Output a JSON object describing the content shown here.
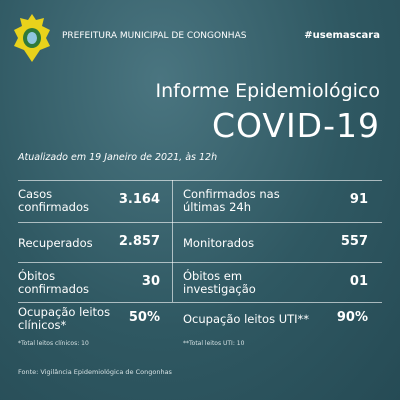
{
  "header": {
    "organization": "PREFEITURA MUNICIPAL DE CONGONHAS",
    "hashtag": "#usemascara"
  },
  "title": "Informe Epidemiológico",
  "subtitle": "COVID-19",
  "updated": "Atualizado em 19 Janeiro de 2021, às 12h",
  "rows": [
    [
      {
        "label": "Casos confirmados",
        "value": "3.164"
      },
      {
        "label": "Confirmados nas últimas 24h",
        "value": "91"
      }
    ],
    [
      {
        "label": "Recuperados",
        "value": "2.857"
      },
      {
        "label": "Monitorados",
        "value": "557"
      }
    ],
    [
      {
        "label": "Óbitos confirmados",
        "value": "30"
      },
      {
        "label": "Óbitos em investigação",
        "value": "01"
      }
    ],
    [
      {
        "label": "Ocupação leitos clínicos*",
        "value": "50%",
        "note": "*Total leitos clínicos: 10"
      },
      {
        "label": "Ocupação leitos UTI**",
        "value": "90%",
        "note": "**Total leitos UTI: 10"
      }
    ]
  ],
  "source": "Fonte: Vigilância Epidemiológica de Congonhas"
}
